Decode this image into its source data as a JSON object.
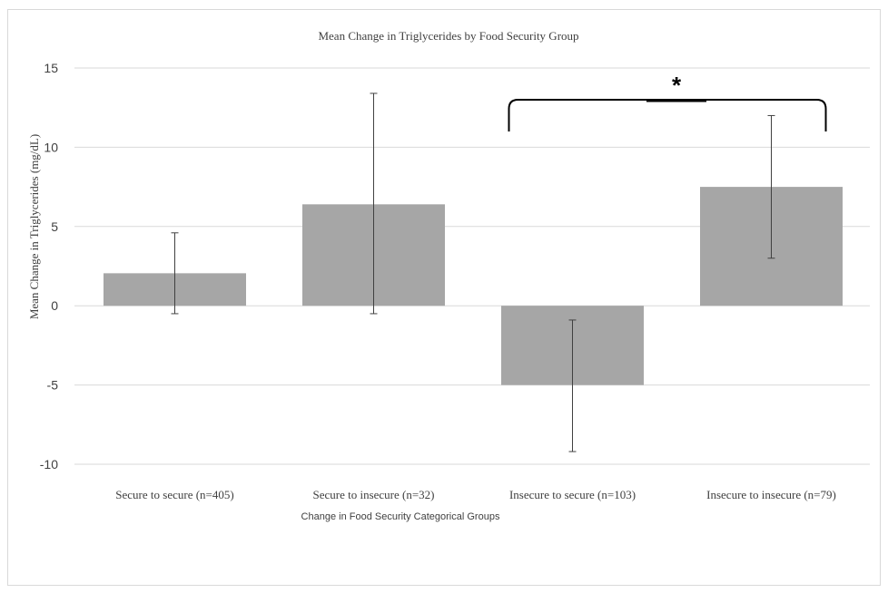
{
  "chart_data": {
    "type": "bar",
    "title": "Mean Change in Triglycerides by Food Security Group",
    "xlabel": "Change in Food Security Categorical Groups",
    "ylabel": "Mean Change in Triglycerides (mg/dL)",
    "ylim": [
      -10,
      15
    ],
    "yticks": [
      15,
      10,
      5,
      0,
      -5,
      -10
    ],
    "grid": true,
    "categories": [
      "Secure to secure (n=405)",
      "Secure to insecure (n=32)",
      "Insecure to secure (n=103)",
      "Insecure to insecure (n=79)"
    ],
    "values": [
      2.05,
      6.4,
      -5.0,
      7.5
    ],
    "error_low": [
      -0.5,
      -0.5,
      -9.2,
      3.0
    ],
    "error_high": [
      4.6,
      13.4,
      -0.9,
      12.0
    ],
    "bar_color": "#a6a6a6",
    "significance": {
      "from": 2,
      "to": 3,
      "label": "*"
    }
  }
}
